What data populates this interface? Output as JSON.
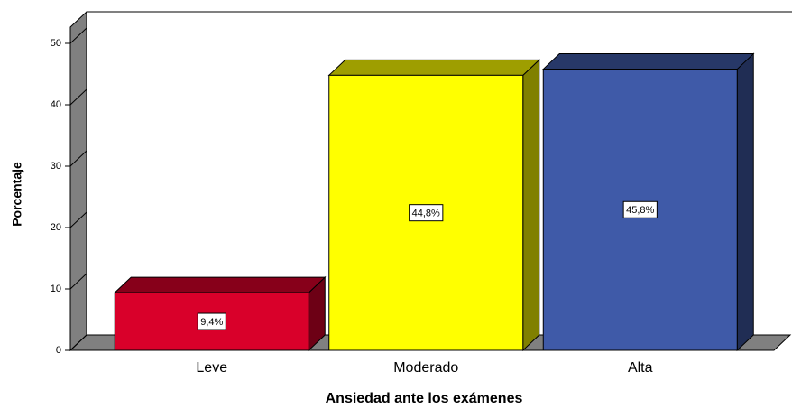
{
  "chart_data": {
    "type": "bar3d",
    "categories": [
      "Leve",
      "Moderado",
      "Alta"
    ],
    "values": [
      9.4,
      44.8,
      45.8
    ],
    "value_labels": [
      "9,4%",
      "44,8%",
      "45,8%"
    ],
    "colors": [
      "#d9002a",
      "#ffff00",
      "#3f5aa8"
    ],
    "x_label": "Ansiedad ante los exámenes",
    "y_label": "Porcentaje",
    "ylim": [
      0,
      50
    ],
    "yticks": [
      0,
      10,
      20,
      30,
      40,
      50
    ]
  }
}
